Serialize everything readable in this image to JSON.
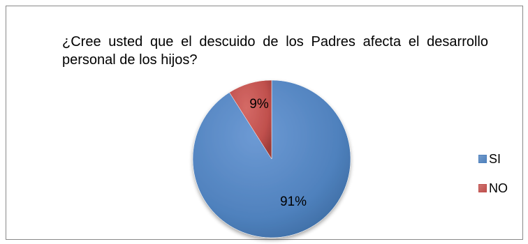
{
  "chart_data": {
    "type": "pie",
    "title": "¿Cree usted que el descuido de los Padres afecta el desarrollo personal de los hijos?",
    "categories": [
      "SI",
      "NO"
    ],
    "values": [
      91,
      9
    ],
    "labels": [
      "91%",
      "9%"
    ],
    "colors": [
      "#4f81bd",
      "#c0504d"
    ],
    "legend_position": "right"
  }
}
